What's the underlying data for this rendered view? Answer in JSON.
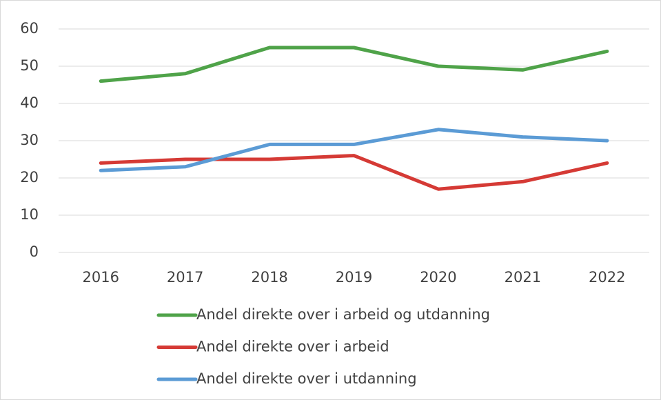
{
  "chart_data": {
    "type": "line",
    "categories": [
      "2016",
      "2017",
      "2018",
      "2019",
      "2020",
      "2021",
      "2022"
    ],
    "series": [
      {
        "name": "Andel direkte over i arbeid og utdanning",
        "color": "#4fa349",
        "values": [
          46,
          48,
          55,
          55,
          50,
          49,
          54
        ]
      },
      {
        "name": "Andel direkte over i arbeid",
        "color": "#d53a35",
        "values": [
          24,
          25,
          25,
          26,
          17,
          19,
          24
        ]
      },
      {
        "name": "Andel direkte over i utdanning",
        "color": "#5b9bd5",
        "values": [
          22,
          23,
          29,
          29,
          33,
          31,
          30
        ]
      }
    ],
    "ylim": [
      0,
      60
    ],
    "yticks": [
      0,
      10,
      20,
      30,
      40,
      50,
      60
    ],
    "grid": true,
    "legend": "bottom"
  }
}
